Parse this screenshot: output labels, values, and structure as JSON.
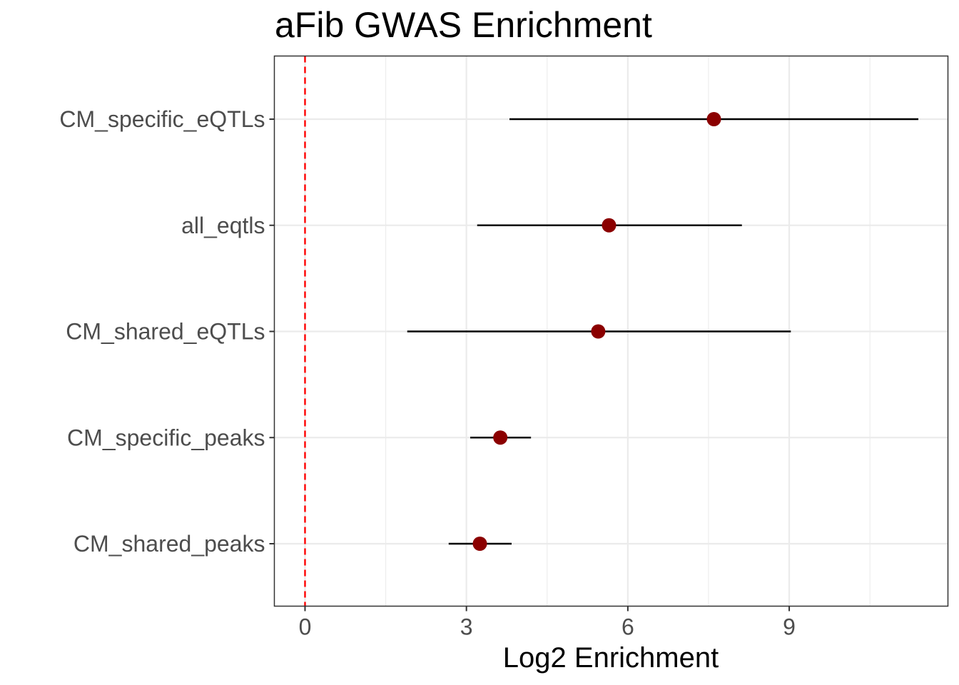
{
  "chart_data": {
    "type": "scatter",
    "title": "aFib GWAS Enrichment",
    "xlabel": "Log2 Enrichment",
    "ylabel": "",
    "xlim": [
      -0.57,
      11.95
    ],
    "xticks": [
      0,
      3,
      6,
      9
    ],
    "categories": [
      "CM_specific_eQTLs",
      "all_eqtls",
      "CM_shared_eQTLs",
      "CM_specific_peaks",
      "CM_shared_peaks"
    ],
    "series": [
      {
        "values": [
          7.6,
          5.65,
          5.45,
          3.63,
          3.25
        ],
        "ci_low": [
          3.8,
          3.2,
          1.9,
          3.07,
          2.67
        ],
        "ci_high": [
          11.4,
          8.12,
          9.03,
          4.2,
          3.84
        ]
      }
    ],
    "reference_line": {
      "x": 0,
      "style": "dashed",
      "color": "#ff0000"
    },
    "grid": true,
    "legend": "none",
    "colors": {
      "point": "#8b0000",
      "errorbar": "#000000",
      "grid": "#ebebeb",
      "panel_border": "#333333",
      "ticks": "#333333"
    }
  }
}
